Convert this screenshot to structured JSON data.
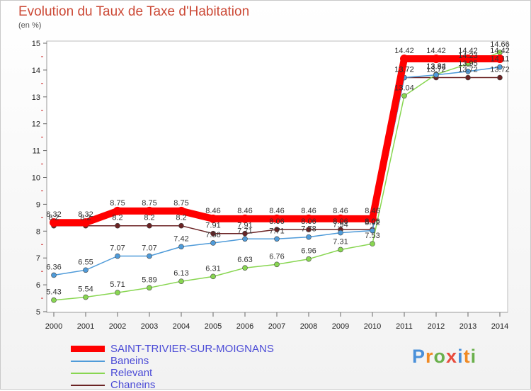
{
  "chart_data": {
    "type": "line",
    "title": "Evolution du Taux de Taxe d'Habitation",
    "subtitle": "(en %)",
    "x": [
      "2000",
      "2001",
      "2002",
      "2003",
      "2004",
      "2005",
      "2006",
      "2007",
      "2008",
      "2009",
      "2010",
      "2011",
      "2012",
      "2013",
      "2014"
    ],
    "ylim": [
      5,
      15
    ],
    "yticks": [
      "5",
      "6",
      "7",
      "8",
      "9",
      "10",
      "11",
      "12",
      "13",
      "14",
      "15"
    ],
    "grid": false,
    "legend_position": "bottom-left",
    "series": [
      {
        "name": "SAINT-TRIVIER-SUR-MOIGNANS",
        "color": "#ff0000",
        "values": [
          8.32,
          8.32,
          8.75,
          8.75,
          8.75,
          8.46,
          8.46,
          8.46,
          8.46,
          8.46,
          8.46,
          14.42,
          14.42,
          14.42,
          14.42
        ],
        "labels": [
          "8.32",
          "8.32",
          "8.75",
          "8.75",
          "8.75",
          "8.46",
          "8.46",
          "8.46",
          "8.46",
          "8.46",
          "8.46",
          "14.42",
          "14.42",
          "14.42",
          "14.42"
        ]
      },
      {
        "name": "Baneins",
        "color": "#4f9bd9",
        "values": [
          6.36,
          6.55,
          7.07,
          7.07,
          7.42,
          7.56,
          7.71,
          7.71,
          7.78,
          7.94,
          8.02,
          13.72,
          13.82,
          13.95,
          14.11
        ],
        "labels": [
          "6.36",
          "6.55",
          "7.07",
          "7.07",
          "7.42",
          "7.56",
          "7.71",
          "7.71",
          "7.78",
          "7.94",
          "8.02",
          "13.72",
          "13.82",
          "13.95",
          "14.11"
        ]
      },
      {
        "name": "Relevant",
        "color": "#88d651",
        "values": [
          5.43,
          5.54,
          5.71,
          5.89,
          6.13,
          6.31,
          6.63,
          6.76,
          6.96,
          7.31,
          7.53,
          13.04,
          13.84,
          14.23,
          14.66
        ],
        "labels": [
          "5.43",
          "5.54",
          "5.71",
          "5.89",
          "6.13",
          "6.31",
          "6.63",
          "6.76",
          "6.96",
          "7.31",
          "7.53",
          "13.04",
          "13.84",
          "14.23",
          "14.66"
        ]
      },
      {
        "name": "Chaneins",
        "color": "#6b2324",
        "values": [
          8.2,
          8.2,
          8.2,
          8.2,
          8.2,
          7.91,
          7.91,
          8.06,
          8.06,
          8.06,
          8.06,
          13.72,
          13.72,
          13.72,
          13.72
        ],
        "labels": [
          "8.2",
          "8.2",
          "8.2",
          "8.2",
          "8.2",
          "7.91",
          "7.91",
          "8.06",
          "8.06",
          "8.06",
          "8.06",
          "13.72",
          "13.72",
          "13.72",
          "13.72"
        ]
      }
    ]
  },
  "branding": {
    "logo_text": "Proxiti",
    "logo_colors": [
      "#4a90d9",
      "#f08a24",
      "#6ab04c",
      "#e84c3d"
    ]
  }
}
